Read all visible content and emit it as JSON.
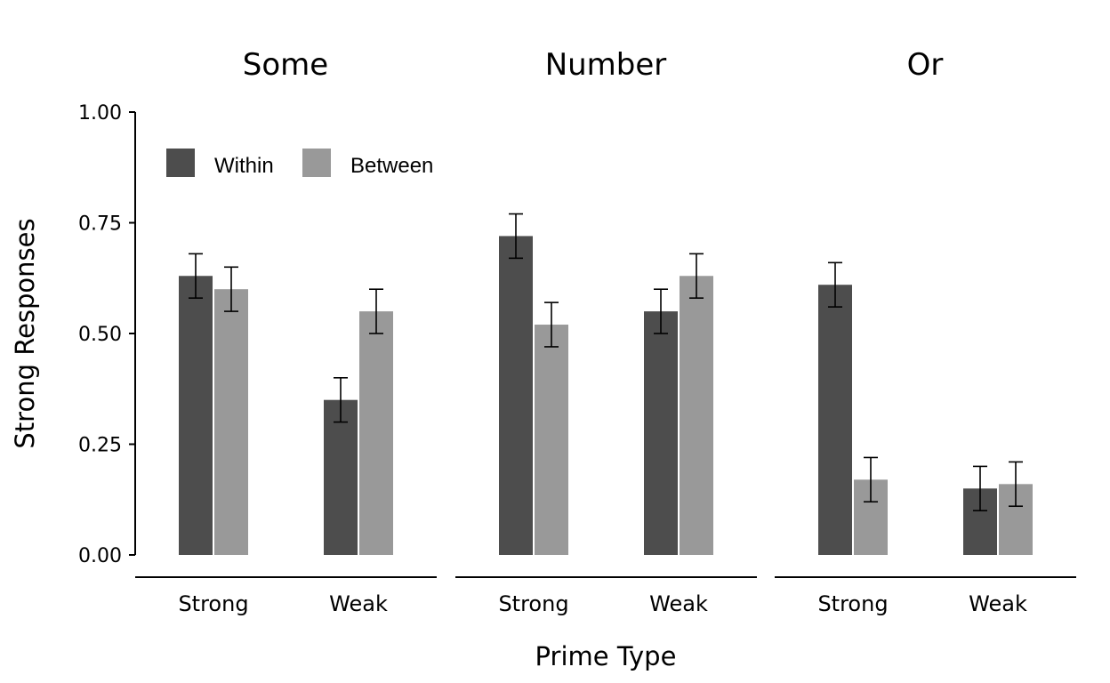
{
  "chart_data": {
    "type": "bar",
    "xlabel": "Prime Type",
    "ylabel": "Strong Responses",
    "ylim": [
      0,
      1
    ],
    "yticks": [
      "0.00",
      "0.25",
      "0.50",
      "0.75",
      "1.00"
    ],
    "ytick_values": [
      0,
      0.25,
      0.5,
      0.75,
      1.0
    ],
    "categories": [
      "Strong",
      "Weak"
    ],
    "legend": {
      "placement": "top-left",
      "entries": [
        {
          "name": "Within",
          "color": "#4d4d4d"
        },
        {
          "name": "Between",
          "color": "#999999"
        }
      ]
    },
    "panels": [
      {
        "title": "Some",
        "series": [
          {
            "name": "Within",
            "values": [
              0.63,
              0.35
            ],
            "error": [
              0.05,
              0.05
            ]
          },
          {
            "name": "Between",
            "values": [
              0.6,
              0.55
            ],
            "error": [
              0.05,
              0.05
            ]
          }
        ]
      },
      {
        "title": "Number",
        "series": [
          {
            "name": "Within",
            "values": [
              0.72,
              0.55
            ],
            "error": [
              0.05,
              0.05
            ]
          },
          {
            "name": "Between",
            "values": [
              0.52,
              0.63
            ],
            "error": [
              0.05,
              0.05
            ]
          }
        ]
      },
      {
        "title": "Or",
        "series": [
          {
            "name": "Within",
            "values": [
              0.61,
              0.15
            ],
            "error": [
              0.05,
              0.05
            ]
          },
          {
            "name": "Between",
            "values": [
              0.17,
              0.16
            ],
            "error": [
              0.05,
              0.05
            ]
          }
        ]
      }
    ],
    "grid": false
  }
}
